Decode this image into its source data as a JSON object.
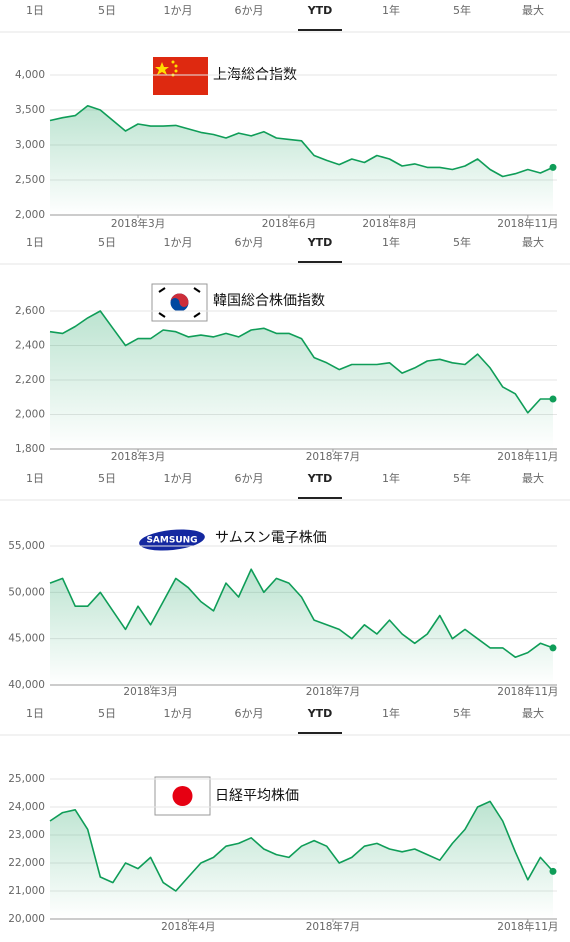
{
  "tabs": [
    "1日",
    "5日",
    "1か月",
    "6か月",
    "YTD",
    "1年",
    "5年",
    "最大"
  ],
  "selected": 4,
  "chart_data": [
    {
      "type": "line",
      "title": "上海総合指数",
      "color": "#0f9d58",
      "xlim": [
        0,
        40
      ],
      "ylim": [
        2000,
        4000
      ],
      "yticks": [
        {
          "value": 2000,
          "label": "2,000"
        },
        {
          "value": 2500,
          "label": "2,500"
        },
        {
          "value": 3000,
          "label": "3,000"
        },
        {
          "value": 3500,
          "label": "3,500"
        },
        {
          "value": 4000,
          "label": "4,000"
        }
      ],
      "xticks": [
        {
          "value": 7,
          "label": "2018年3月"
        },
        {
          "value": 19,
          "label": "2018年6月"
        },
        {
          "value": 27,
          "label": "2018年8月"
        },
        {
          "value": 38,
          "label": "2018年11月"
        }
      ],
      "values": [
        3350,
        3390,
        3420,
        3560,
        3500,
        3350,
        3200,
        3300,
        3270,
        3270,
        3280,
        3230,
        3180,
        3150,
        3100,
        3170,
        3130,
        3190,
        3100,
        3080,
        3060,
        2850,
        2780,
        2720,
        2800,
        2750,
        2850,
        2800,
        2700,
        2730,
        2680,
        2680,
        2650,
        2700,
        2800,
        2650,
        2550,
        2590,
        2650,
        2600,
        2680
      ]
    },
    {
      "type": "line",
      "title": "韓国総合株価指数",
      "color": "#0f9d58",
      "xlim": [
        0,
        40
      ],
      "ylim": [
        1800,
        2600
      ],
      "yticks": [
        {
          "value": 1800,
          "label": "1,800"
        },
        {
          "value": 2000,
          "label": "2,000"
        },
        {
          "value": 2200,
          "label": "2,200"
        },
        {
          "value": 2400,
          "label": "2,400"
        },
        {
          "value": 2600,
          "label": "2,600"
        }
      ],
      "xticks": [
        {
          "value": 7,
          "label": "2018年3月"
        },
        {
          "value": 22.5,
          "label": "2018年7月"
        },
        {
          "value": 38,
          "label": "2018年11月"
        }
      ],
      "values": [
        2480,
        2470,
        2510,
        2560,
        2600,
        2500,
        2400,
        2440,
        2440,
        2490,
        2480,
        2450,
        2460,
        2450,
        2470,
        2450,
        2490,
        2500,
        2470,
        2470,
        2440,
        2330,
        2300,
        2260,
        2290,
        2290,
        2290,
        2300,
        2240,
        2270,
        2310,
        2320,
        2300,
        2290,
        2350,
        2270,
        2160,
        2120,
        2010,
        2090,
        2090
      ]
    },
    {
      "type": "line",
      "title": "サムスン電子株価",
      "logo": "SAMSUNG",
      "color": "#0f9d58",
      "xlim": [
        0,
        40
      ],
      "ylim": [
        40000,
        55000
      ],
      "yticks": [
        {
          "value": 40000,
          "label": "40,000"
        },
        {
          "value": 45000,
          "label": "45,000"
        },
        {
          "value": 50000,
          "label": "50,000"
        },
        {
          "value": 55000,
          "label": "55,000"
        }
      ],
      "xticks": [
        {
          "value": 8,
          "label": "2018年3月"
        },
        {
          "value": 22.5,
          "label": "2018年7月"
        },
        {
          "value": 38,
          "label": "2018年11月"
        }
      ],
      "values": [
        51000,
        51500,
        48500,
        48500,
        50000,
        48000,
        46000,
        48500,
        46500,
        49000,
        51500,
        50500,
        49000,
        48000,
        51000,
        49500,
        52500,
        50000,
        51500,
        51000,
        49500,
        47000,
        46500,
        46000,
        45000,
        46500,
        45500,
        47000,
        45500,
        44500,
        45500,
        47500,
        45000,
        46000,
        45000,
        44000,
        44000,
        43000,
        43500,
        44500,
        44000
      ]
    },
    {
      "type": "line",
      "title": "日経平均株価",
      "color": "#0f9d58",
      "xlim": [
        0,
        40
      ],
      "ylim": [
        20000,
        25000
      ],
      "yticks": [
        {
          "value": 20000,
          "label": "20,000"
        },
        {
          "value": 21000,
          "label": "21,000"
        },
        {
          "value": 22000,
          "label": "22,000"
        },
        {
          "value": 23000,
          "label": "23,000"
        },
        {
          "value": 24000,
          "label": "24,000"
        },
        {
          "value": 25000,
          "label": "25,000"
        }
      ],
      "xticks": [
        {
          "value": 11,
          "label": "2018年4月"
        },
        {
          "value": 22.5,
          "label": "2018年7月"
        },
        {
          "value": 38,
          "label": "2018年11月"
        }
      ],
      "values": [
        23500,
        23800,
        23900,
        23200,
        21500,
        21300,
        22000,
        21800,
        22200,
        21300,
        21000,
        21500,
        22000,
        22200,
        22600,
        22700,
        22900,
        22500,
        22300,
        22200,
        22600,
        22800,
        22600,
        22000,
        22200,
        22600,
        22700,
        22500,
        22400,
        22500,
        22300,
        22100,
        22700,
        23200,
        24000,
        24200,
        23500,
        22400,
        21400,
        22200,
        21700
      ]
    }
  ]
}
